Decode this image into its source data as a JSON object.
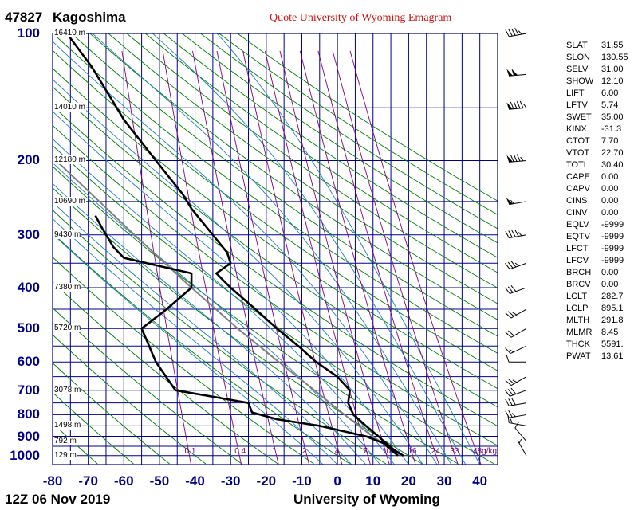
{
  "station": {
    "id": "47827",
    "name": "Kagoshima"
  },
  "credit": "Quote University of Wyoming Emagram",
  "footer": {
    "time": "12Z 06 Nov 2019",
    "source": "University of Wyoming"
  },
  "pressure_labels": [
    "100",
    "200",
    "300",
    "400",
    "500",
    "600",
    "700",
    "800",
    "900",
    "1000"
  ],
  "temperature_labels": [
    "-80",
    "-70",
    "-60",
    "-50",
    "-40",
    "-30",
    "-20",
    "-10",
    "0",
    "10",
    "20",
    "30",
    "40"
  ],
  "height_labels": [
    {
      "p": 100,
      "text": "16410 m"
    },
    {
      "p": 150,
      "text": "14010 m"
    },
    {
      "p": 200,
      "text": "12180 m"
    },
    {
      "p": 250,
      "text": "10690 m"
    },
    {
      "p": 300,
      "text": "9430 m"
    },
    {
      "p": 400,
      "text": "7380 m"
    },
    {
      "p": 500,
      "text": "5720 m"
    },
    {
      "p": 700,
      "text": "3078 m"
    },
    {
      "p": 850,
      "text": "1498 m"
    },
    {
      "p": 925,
      "text": "792 m"
    },
    {
      "p": 1000,
      "text": "129 m"
    }
  ],
  "mixing_ratio_labels": [
    "0.1",
    "0.4",
    "1",
    "2",
    "4",
    "7",
    "10",
    "16",
    "24",
    "33",
    "48g/kg"
  ],
  "indices": [
    {
      "name": "SLAT",
      "value": "31.55"
    },
    {
      "name": "SLON",
      "value": "130.55"
    },
    {
      "name": "SELV",
      "value": "31.00"
    },
    {
      "name": "SHOW",
      "value": "12.10"
    },
    {
      "name": "LIFT",
      "value": "6.00"
    },
    {
      "name": "LFTV",
      "value": "5.74"
    },
    {
      "name": "SWET",
      "value": "35.00"
    },
    {
      "name": "KINX",
      "value": "-31.3"
    },
    {
      "name": "CTOT",
      "value": "7.70"
    },
    {
      "name": "VTOT",
      "value": "22.70"
    },
    {
      "name": "TOTL",
      "value": "30.40"
    },
    {
      "name": "CAPE",
      "value": "0.00"
    },
    {
      "name": "CAPV",
      "value": "0.00"
    },
    {
      "name": "CINS",
      "value": "0.00"
    },
    {
      "name": "CINV",
      "value": "0.00"
    },
    {
      "name": "EQLV",
      "value": "-9999"
    },
    {
      "name": "EQTV",
      "value": "-9999"
    },
    {
      "name": "LFCT",
      "value": "-9999"
    },
    {
      "name": "LFCV",
      "value": "-9999"
    },
    {
      "name": "BRCH",
      "value": "0.00"
    },
    {
      "name": "BRCV",
      "value": "0.00"
    },
    {
      "name": "LCLT",
      "value": "282.7"
    },
    {
      "name": "LCLP",
      "value": "895.1"
    },
    {
      "name": "MLTH",
      "value": "291.8"
    },
    {
      "name": "MLMR",
      "value": "8.45"
    },
    {
      "name": "THCK",
      "value": "5591."
    },
    {
      "name": "PWAT",
      "value": "13.61"
    }
  ],
  "colors": {
    "grid": "#00008b",
    "dry_adiabat": "#008000",
    "moist_adiabat": "#1f7fbf",
    "mixing_ratio": "#800080",
    "temperature": "#000000",
    "dewpoint": "#000000",
    "parcel": "#808080"
  },
  "chart_data": {
    "type": "line",
    "subtype": "emagram (log-pressure vertical axis, linear temperature)",
    "xlim": [
      -80,
      45
    ],
    "ylim_hPa": [
      1000,
      100
    ],
    "y_scale": "log",
    "grid": true,
    "series": [
      {
        "name": "temperature",
        "points": [
          [
            1000,
            18.5
          ],
          [
            970,
            16
          ],
          [
            925,
            13
          ],
          [
            900,
            11.5
          ],
          [
            850,
            8
          ],
          [
            800,
            4.5
          ],
          [
            750,
            3
          ],
          [
            700,
            3.5
          ],
          [
            650,
            0
          ],
          [
            600,
            -6
          ],
          [
            550,
            -11
          ],
          [
            500,
            -17
          ],
          [
            450,
            -23
          ],
          [
            400,
            -30
          ],
          [
            370,
            -34
          ],
          [
            350,
            -30
          ],
          [
            330,
            -31
          ],
          [
            300,
            -35
          ],
          [
            260,
            -41
          ],
          [
            240,
            -43.5
          ],
          [
            200,
            -51
          ],
          [
            160,
            -60
          ],
          [
            150,
            -62
          ],
          [
            120,
            -69
          ],
          [
            100,
            -76
          ]
        ]
      },
      {
        "name": "dewpoint",
        "points": [
          [
            1000,
            17
          ],
          [
            960,
            14.5
          ],
          [
            935,
            13
          ],
          [
            900,
            8
          ],
          [
            850,
            -5
          ],
          [
            820,
            -17
          ],
          [
            790,
            -24
          ],
          [
            750,
            -25
          ],
          [
            700,
            -45.5
          ],
          [
            600,
            -51
          ],
          [
            500,
            -55
          ],
          [
            450,
            -48
          ],
          [
            400,
            -41
          ],
          [
            370,
            -41
          ],
          [
            340,
            -60
          ],
          [
            320,
            -63
          ],
          [
            290,
            -66
          ],
          [
            270,
            -68
          ]
        ]
      },
      {
        "name": "parcel",
        "points": [
          [
            1000,
            18
          ],
          [
            895,
            9.5
          ],
          [
            800,
            2
          ],
          [
            700,
            -6.5
          ],
          [
            600,
            -16.5
          ],
          [
            500,
            -28
          ],
          [
            400,
            -41
          ],
          [
            300,
            -57
          ],
          [
            200,
            -79
          ]
        ]
      }
    ],
    "wind_barbs": [
      {
        "p": 1000,
        "dir": 330,
        "kt": 5
      },
      {
        "p": 925,
        "dir": 320,
        "kt": 10
      },
      {
        "p": 850,
        "dir": 280,
        "kt": 15
      },
      {
        "p": 800,
        "dir": 260,
        "kt": 25
      },
      {
        "p": 750,
        "dir": 260,
        "kt": 30
      },
      {
        "p": 700,
        "dir": 250,
        "kt": 30
      },
      {
        "p": 650,
        "dir": 240,
        "kt": 25
      },
      {
        "p": 600,
        "dir": 270,
        "kt": 10
      },
      {
        "p": 550,
        "dir": 245,
        "kt": 15
      },
      {
        "p": 500,
        "dir": 240,
        "kt": 20
      },
      {
        "p": 450,
        "dir": 240,
        "kt": 25
      },
      {
        "p": 400,
        "dir": 250,
        "kt": 30
      },
      {
        "p": 350,
        "dir": 250,
        "kt": 35
      },
      {
        "p": 300,
        "dir": 260,
        "kt": 45
      },
      {
        "p": 250,
        "dir": 260,
        "kt": 55
      },
      {
        "p": 200,
        "dir": 265,
        "kt": 85
      },
      {
        "p": 150,
        "dir": 265,
        "kt": 95
      },
      {
        "p": 125,
        "dir": 265,
        "kt": 100
      },
      {
        "p": 100,
        "dir": 260,
        "kt": 45
      }
    ]
  }
}
